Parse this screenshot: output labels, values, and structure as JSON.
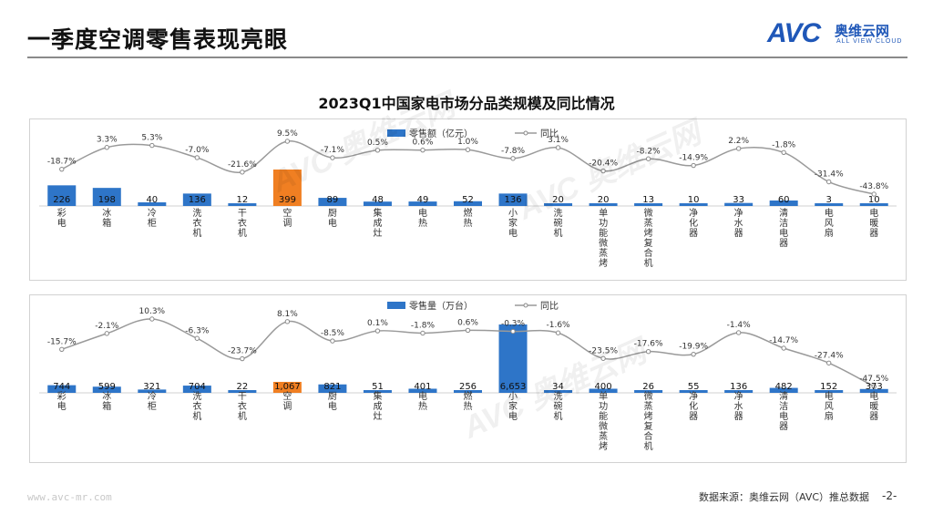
{
  "page": {
    "title": "一季度空调零售表现亮眼",
    "logo": {
      "mark": "AVC",
      "cn": "奥维云网",
      "en": "ALL VIEW CLOUD"
    },
    "chart_title": "2023Q1中国家电市场分品类规模及同比情况",
    "footer_url": "www.avc-mr.com",
    "footer_source": "数据来源：奥维云网（AVC）推总数据",
    "page_number": "-2-",
    "watermark": "AVC 奥维云网"
  },
  "colors": {
    "bar": "#2e75c8",
    "highlight": "#f07f22",
    "line": "#9a9a9a",
    "marker": "#8a8a8a"
  },
  "chart_data": [
    {
      "type": "bar",
      "categories": [
        "彩电",
        "冰箱",
        "冷柜",
        "洗衣机",
        "干衣机",
        "空调",
        "厨电",
        "集成灶",
        "电热",
        "燃热",
        "小家电",
        "洗碗机",
        "单功能微蒸烤",
        "微蒸烤复合机",
        "净化器",
        "净水器",
        "清洁电器",
        "电风扇",
        "电暖器"
      ],
      "highlight_index": 5,
      "series": [
        {
          "name": "零售额（亿元）",
          "kind": "bar",
          "values": [
            226,
            198,
            40,
            136,
            12,
            399,
            89,
            48,
            49,
            52,
            136,
            20,
            20,
            13,
            10,
            33,
            60,
            3,
            10
          ],
          "labels": [
            "226",
            "198",
            "40",
            "136",
            "12",
            "399",
            "89",
            "48",
            "49",
            "52",
            "136",
            "20",
            "20",
            "13",
            "10",
            "33",
            "60",
            "3",
            "10"
          ]
        },
        {
          "name": "同比",
          "kind": "line",
          "values": [
            -18.7,
            3.3,
            5.3,
            -7.0,
            -21.6,
            9.5,
            -7.1,
            0.5,
            0.6,
            1.0,
            -7.8,
            3.1,
            -20.4,
            -8.2,
            -14.9,
            2.2,
            -1.8,
            -31.4,
            -43.8
          ],
          "labels": [
            "-18.7%",
            "3.3%",
            "5.3%",
            "-7.0%",
            "-21.6%",
            "9.5%",
            "-7.1%",
            "0.5%",
            "0.6%",
            "1.0%",
            "-7.8%",
            "3.1%",
            "-20.4%",
            "-8.2%",
            "-14.9%",
            "2.2%",
            "-1.8%",
            "-31.4%",
            "-43.8%"
          ]
        }
      ],
      "legend_position": "top-center"
    },
    {
      "type": "bar",
      "categories": [
        "彩电",
        "冰箱",
        "冷柜",
        "洗衣机",
        "干衣机",
        "空调",
        "厨电",
        "集成灶",
        "电热",
        "燃热",
        "小家电",
        "洗碗机",
        "单功能微蒸烤",
        "微蒸烤复合机",
        "净化器",
        "净水器",
        "清洁电器",
        "电风扇",
        "电暖器"
      ],
      "highlight_index": 5,
      "series": [
        {
          "name": "零售量（万台）",
          "kind": "bar",
          "values": [
            744,
            599,
            321,
            704,
            22,
            1067,
            821,
            51,
            401,
            256,
            6653,
            34,
            400,
            26,
            55,
            136,
            482,
            152,
            373
          ],
          "labels": [
            "744",
            "599",
            "321",
            "704",
            "22",
            "1,067",
            "821",
            "51",
            "401",
            "256",
            "6,653",
            "34",
            "400",
            "26",
            "55",
            "136",
            "482",
            "152",
            "373"
          ]
        },
        {
          "name": "同比",
          "kind": "line",
          "values": [
            -15.7,
            -2.1,
            10.3,
            -6.3,
            -23.7,
            8.1,
            -8.5,
            0.1,
            -1.8,
            0.6,
            -0.3,
            -1.6,
            -23.5,
            -17.6,
            -19.9,
            -1.4,
            -14.7,
            -27.4,
            -47.5
          ],
          "labels": [
            "-15.7%",
            "-2.1%",
            "10.3%",
            "-6.3%",
            "-23.7%",
            "8.1%",
            "-8.5%",
            "0.1%",
            "-1.8%",
            "0.6%",
            "-0.3%",
            "-1.6%",
            "-23.5%",
            "-17.6%",
            "-19.9%",
            "-1.4%",
            "-14.7%",
            "-27.4%",
            "-47.5%"
          ]
        }
      ],
      "legend_position": "top-center"
    }
  ]
}
